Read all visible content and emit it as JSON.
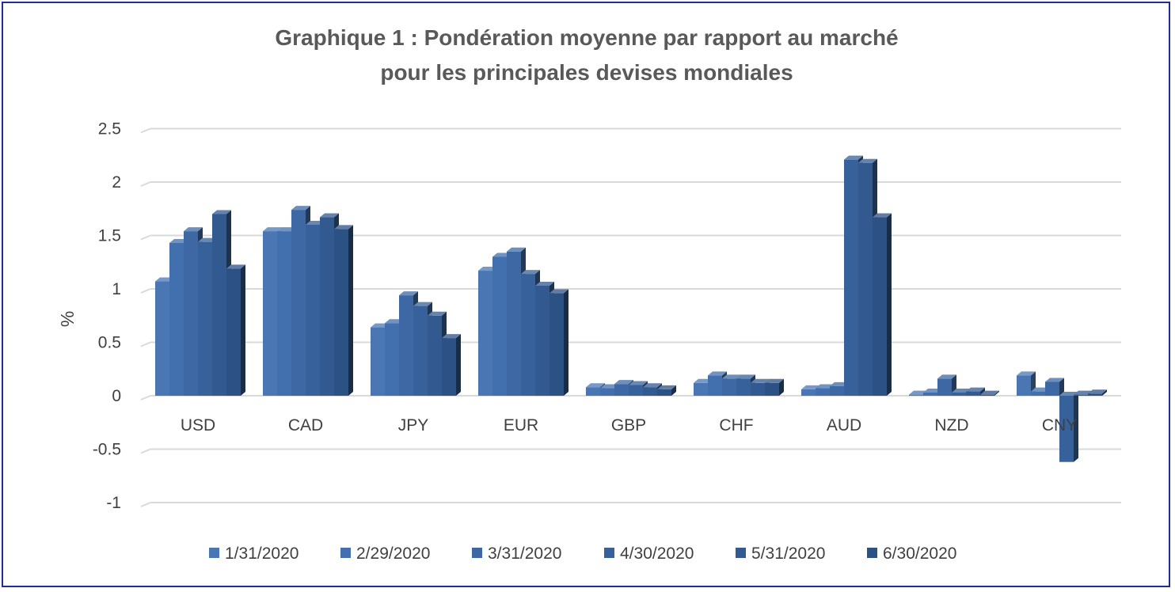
{
  "chart_data": {
    "type": "bar",
    "title_lines": [
      "Graphique 1 : Pondération moyenne par rapport au marché",
      "pour les principales devises mondiales"
    ],
    "ylabel": "%",
    "xlabel": "",
    "ylim": [
      -1,
      2.5
    ],
    "yticks": [
      -1,
      -0.5,
      0,
      0.5,
      1,
      1.5,
      2,
      2.5
    ],
    "ytick_labels": [
      "-1",
      "-0.5",
      "0",
      "0.5",
      "1",
      "1.5",
      "2",
      "2.5"
    ],
    "grid": true,
    "legend_position": "bottom",
    "categories": [
      "USD",
      "CAD",
      "JPY",
      "EUR",
      "GBP",
      "CHF",
      "AUD",
      "NZD",
      "CNY"
    ],
    "series": [
      {
        "name": "1/31/2020",
        "color": "#4a77b4",
        "values": [
          1.07,
          1.54,
          0.64,
          1.17,
          0.08,
          0.12,
          0.06,
          0.01,
          0.19
        ]
      },
      {
        "name": "2/29/2020",
        "color": "#426fad",
        "values": [
          1.43,
          1.54,
          0.68,
          1.3,
          0.07,
          0.19,
          0.07,
          0.03,
          0.04
        ]
      },
      {
        "name": "3/31/2020",
        "color": "#3d68a4",
        "values": [
          1.54,
          1.74,
          0.94,
          1.35,
          0.11,
          0.16,
          0.09,
          0.16,
          0.13
        ]
      },
      {
        "name": "4/30/2020",
        "color": "#37619a",
        "values": [
          1.44,
          1.6,
          0.84,
          1.14,
          0.1,
          0.16,
          2.21,
          0.03,
          -0.62
        ]
      },
      {
        "name": "5/31/2020",
        "color": "#325a90",
        "values": [
          1.7,
          1.67,
          0.75,
          1.03,
          0.08,
          0.12,
          2.18,
          0.04,
          0.01
        ]
      },
      {
        "name": "6/30/2020",
        "color": "#2c5285",
        "values": [
          1.19,
          1.56,
          0.54,
          0.96,
          0.06,
          0.12,
          1.67,
          0.01,
          0.02
        ]
      }
    ]
  }
}
